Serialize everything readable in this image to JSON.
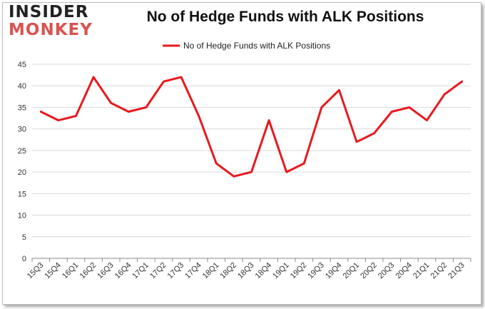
{
  "logo": {
    "line1": "INSIDER",
    "line2": "MONKEY"
  },
  "colors": {
    "series": "#e8191e",
    "grid": "#d9d9d9",
    "axis": "#888888"
  },
  "chart_data": {
    "type": "line",
    "title": "No of Hedge Funds with ALK Positions",
    "xlabel": "",
    "ylabel": "",
    "ylim": [
      0,
      45
    ],
    "yticks": [
      0,
      5,
      10,
      15,
      20,
      25,
      30,
      35,
      40,
      45
    ],
    "grid": "horizontal",
    "legend_position": "top-center",
    "categories": [
      "15Q3",
      "15Q4",
      "16Q1",
      "16Q2",
      "16Q3",
      "16Q4",
      "17Q1",
      "17Q2",
      "17Q3",
      "17Q4",
      "18Q1",
      "18Q2",
      "18Q3",
      "18Q4",
      "19Q1",
      "19Q2",
      "19Q3",
      "19Q4",
      "20Q1",
      "20Q2",
      "20Q3",
      "20Q4",
      "21Q1",
      "21Q2",
      "21Q3"
    ],
    "series": [
      {
        "name": "No of Hedge Funds with ALK Positions",
        "values": [
          34,
          32,
          33,
          42,
          36,
          34,
          35,
          41,
          42,
          33,
          22,
          19,
          20,
          32,
          20,
          22,
          35,
          39,
          27,
          29,
          34,
          35,
          32,
          38,
          41
        ]
      }
    ]
  }
}
